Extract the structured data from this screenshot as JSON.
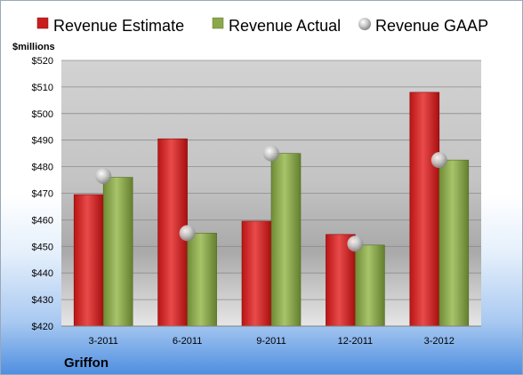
{
  "chart_data": {
    "type": "bar",
    "company": "Griffon",
    "unit_label": "$millions",
    "categories": [
      "3-2011",
      "6-2011",
      "9-2011",
      "12-2011",
      "3-2012"
    ],
    "series": [
      {
        "name": "Revenue Estimate",
        "kind": "bar",
        "color": "#d42a2a",
        "values": [
          469.5,
          490.5,
          459.5,
          454.5,
          508.0
        ]
      },
      {
        "name": "Revenue Actual",
        "kind": "bar",
        "color": "#8aa84a",
        "values": [
          476.0,
          455.0,
          485.0,
          450.5,
          482.5
        ]
      },
      {
        "name": "Revenue GAAP",
        "kind": "marker",
        "color": "#b8b8b8",
        "values": [
          476.5,
          455.0,
          485.0,
          451.0,
          482.5
        ]
      }
    ],
    "ylim": [
      420,
      520
    ],
    "yticks": [
      "$420",
      "$430",
      "$440",
      "$450",
      "$460",
      "$470",
      "$480",
      "$490",
      "$500",
      "$510",
      "$520"
    ],
    "grid": true,
    "legend_position": "top"
  }
}
